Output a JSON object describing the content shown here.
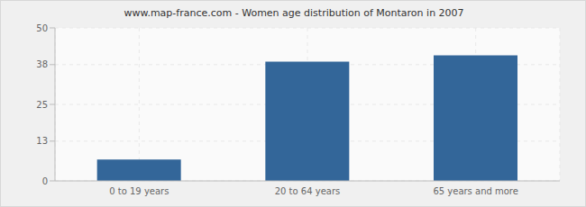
{
  "chart_data": {
    "type": "bar",
    "title": "www.map-france.com - Women age distribution of Montaron in 2007",
    "categories": [
      "0 to 19 years",
      "20 to 64 years",
      "65 years and more"
    ],
    "values": [
      7,
      39,
      41
    ],
    "color": "#336699",
    "ylim": [
      0,
      50
    ],
    "yticks": [
      0,
      13,
      25,
      38,
      50
    ],
    "grid": true
  }
}
